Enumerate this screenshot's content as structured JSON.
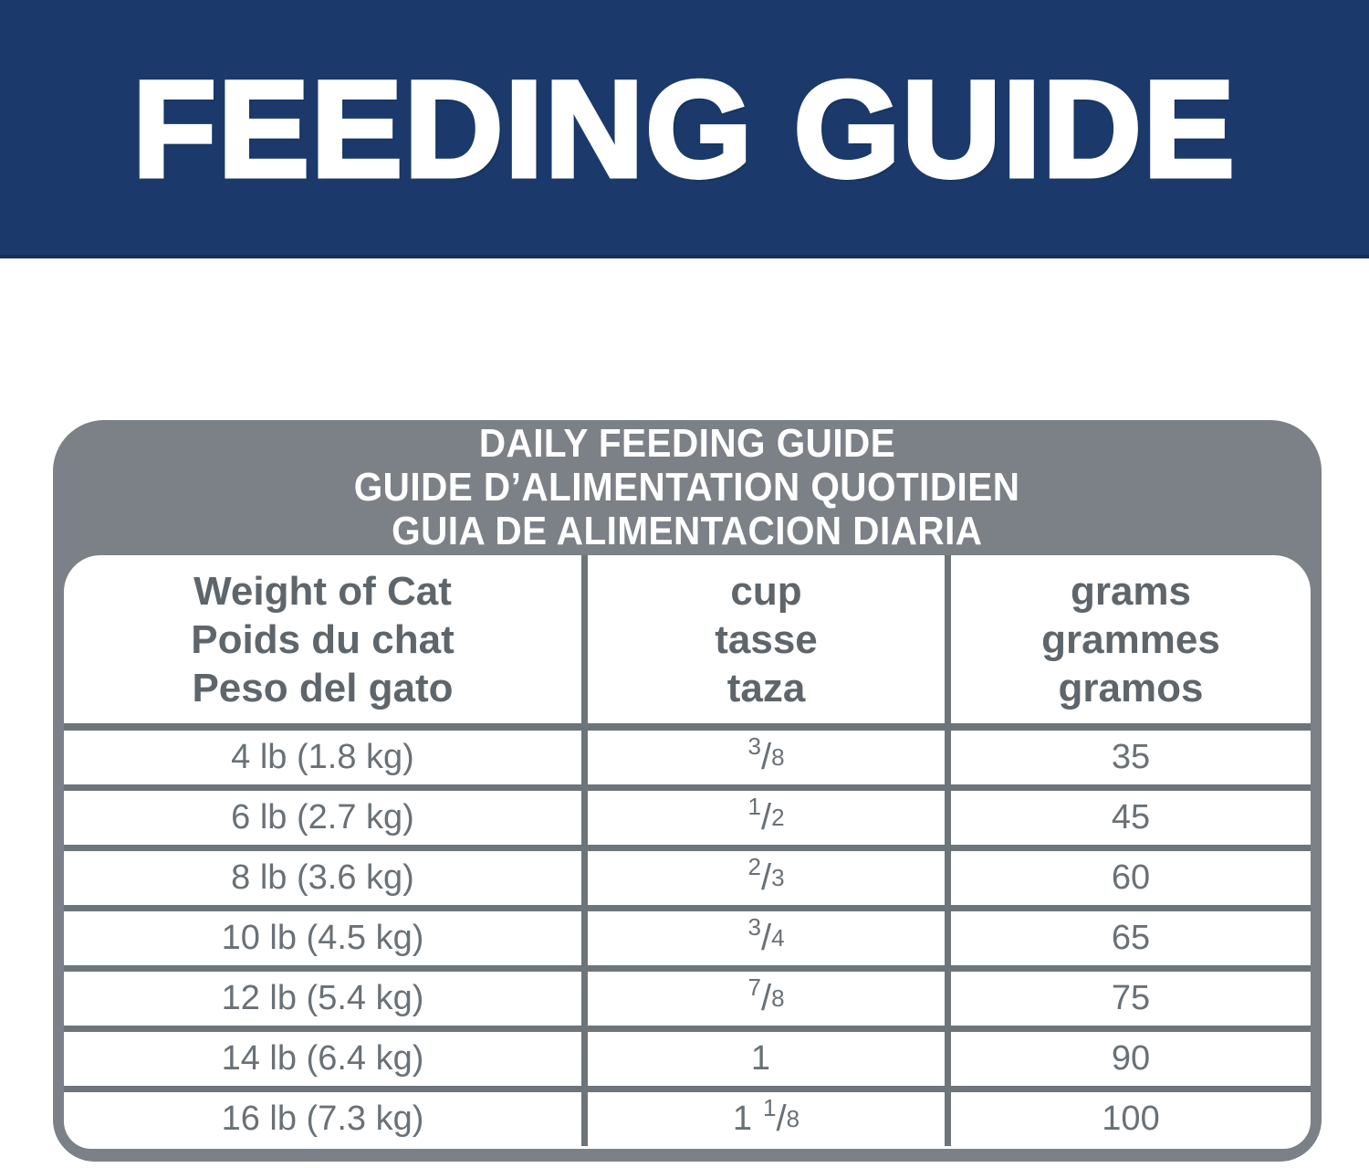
{
  "banner": {
    "title": "FEEDING GUIDE"
  },
  "card": {
    "title_lines": [
      "DAILY FEEDING GUIDE",
      "GUIDE D’ALIMENTATION QUOTIDIEN",
      "GUIA DE ALIMENTACION DIARIA"
    ],
    "columns": [
      {
        "lines": [
          "Weight of Cat",
          "Poids du chat",
          "Peso del gato"
        ]
      },
      {
        "lines": [
          "cup",
          "tasse",
          "taza"
        ]
      },
      {
        "lines": [
          "grams",
          "grammes",
          "gramos"
        ]
      }
    ],
    "rows": [
      {
        "weight": "4 lb (1.8 kg)",
        "whole": "",
        "num": "3",
        "slash": "/",
        "den": "8",
        "grams": "35"
      },
      {
        "weight": "6 lb (2.7 kg)",
        "whole": "",
        "num": "1",
        "slash": "/",
        "den": "2",
        "grams": "45"
      },
      {
        "weight": "8 lb (3.6 kg)",
        "whole": "",
        "num": "2",
        "slash": "/",
        "den": "3",
        "grams": "60"
      },
      {
        "weight": "10 lb (4.5 kg)",
        "whole": "",
        "num": "3",
        "slash": "/",
        "den": "4",
        "grams": "65"
      },
      {
        "weight": "12 lb (5.4 kg)",
        "whole": "",
        "num": "7",
        "slash": "/",
        "den": "8",
        "grams": "75"
      },
      {
        "weight": "14 lb (6.4 kg)",
        "whole": "1",
        "num": "",
        "slash": "",
        "den": "",
        "grams": "90"
      },
      {
        "weight": "16 lb (7.3 kg)",
        "whole": "1",
        "num": "1",
        "slash": "/",
        "den": "8",
        "grams": "100"
      }
    ]
  },
  "colors": {
    "banner_navy": "#1b3a6b",
    "banner_navy_dark": "#15305c",
    "card_gray": "#7b8186",
    "line_gray": "#6d747a",
    "header_text_gray": "#5e656b",
    "body_text_gray": "#6a7176",
    "white": "#ffffff"
  }
}
